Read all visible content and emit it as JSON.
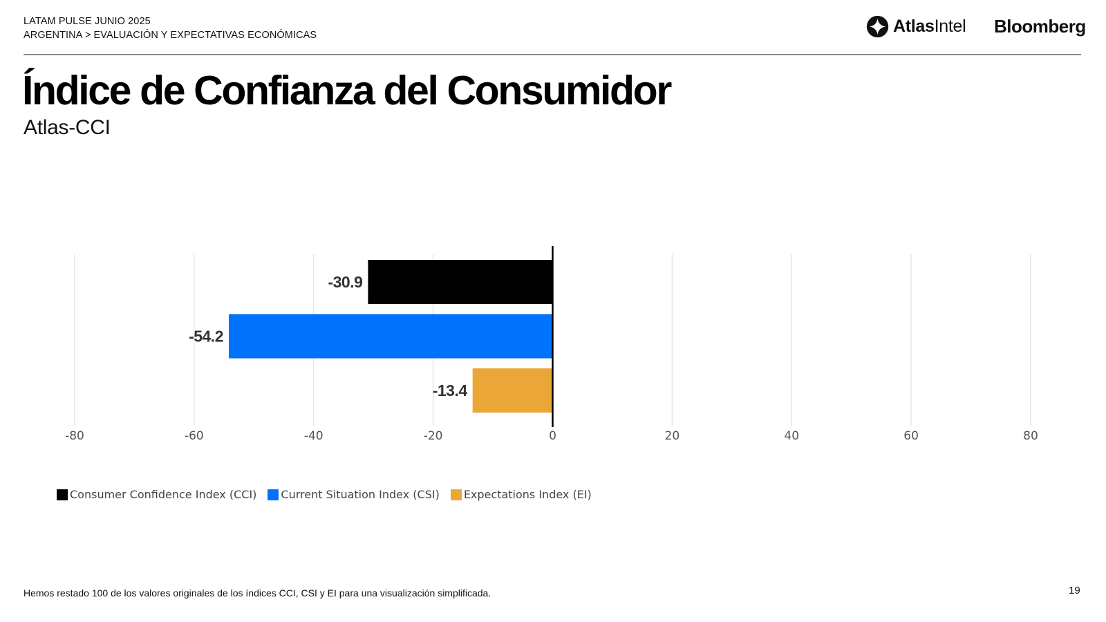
{
  "header": {
    "line1": "LATAM PULSE JUNIO 2025",
    "line2": "ARGENTINA > EVALUACIÓN Y EXPECTATIVAS ECONÓMICAS",
    "logos": {
      "atlas_bold": "Atlas",
      "atlas_light": "Intel",
      "bloomberg": "Bloomberg"
    }
  },
  "page": {
    "title": "Índice de Confianza del Consumidor",
    "subtitle": "Atlas-CCI",
    "footnote": "Hemos restado 100 de los valores originales de los índices CCI, CSI y EI para una visualización simplificada.",
    "page_number": "19"
  },
  "chart_data": {
    "type": "bar",
    "orientation": "horizontal",
    "title": "",
    "xlabel": "",
    "ylabel": "",
    "xlim": [
      -80,
      80
    ],
    "xticks": [
      -80,
      -60,
      -40,
      -20,
      0,
      20,
      40,
      60,
      80
    ],
    "grid": true,
    "legend_position": "bottom-left",
    "categories": [
      "Consumer Confidence Index (CCI)",
      "Current Situation Index (CSI)",
      "Expectations Index (EI)"
    ],
    "series": [
      {
        "name": "Consumer Confidence Index (CCI)",
        "value": -30.9,
        "label": "-30.9",
        "color": "#000000"
      },
      {
        "name": "Current Situation Index (CSI)",
        "value": -54.2,
        "label": "-54.2",
        "color": "#0072fc"
      },
      {
        "name": "Expectations Index (EI)",
        "value": -13.4,
        "label": "-13.4",
        "color": "#eaa738"
      }
    ]
  }
}
